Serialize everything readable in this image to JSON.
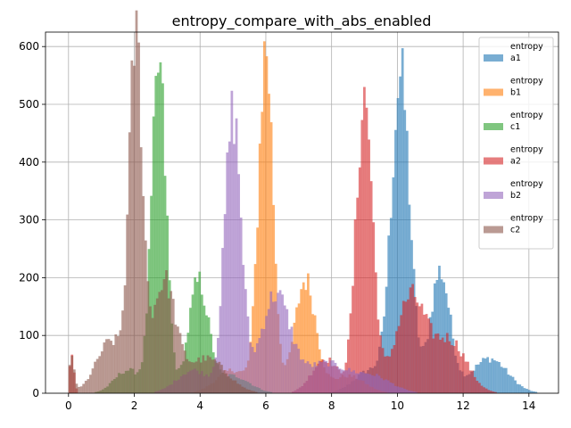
{
  "chart_data": {
    "type": "histogram",
    "title": "entropy_compare_with_abs_enabled",
    "xlabel": "",
    "ylabel": "",
    "xlim": [
      -0.7,
      14.9
    ],
    "ylim": [
      0,
      625
    ],
    "x_ticks": [
      0,
      2,
      4,
      6,
      8,
      10,
      12,
      14
    ],
    "y_ticks": [
      0,
      100,
      200,
      300,
      400,
      500,
      600
    ],
    "grid": true,
    "legend_position": "upper right",
    "alpha": 0.6,
    "series": [
      {
        "name": "entropy a1",
        "color": "#1f77b4",
        "peaks": [
          {
            "x": 10.1,
            "height": 540,
            "sigma": 0.28
          },
          {
            "x": 11.3,
            "height": 210,
            "sigma": 0.3
          },
          {
            "x": 12.8,
            "height": 60,
            "sigma": 0.55
          },
          {
            "x": 9.2,
            "height": 40,
            "sigma": 0.5
          }
        ]
      },
      {
        "name": "entropy b1",
        "color": "#ff7f0e",
        "peaks": [
          {
            "x": 6.0,
            "height": 590,
            "sigma": 0.22
          },
          {
            "x": 7.2,
            "height": 195,
            "sigma": 0.32
          },
          {
            "x": 5.0,
            "height": 40,
            "sigma": 0.5
          },
          {
            "x": 8.5,
            "height": 30,
            "sigma": 0.5
          }
        ]
      },
      {
        "name": "entropy c1",
        "color": "#2ca02c",
        "peaks": [
          {
            "x": 2.75,
            "height": 560,
            "sigma": 0.22
          },
          {
            "x": 3.95,
            "height": 190,
            "sigma": 0.3
          },
          {
            "x": 1.8,
            "height": 40,
            "sigma": 0.4
          },
          {
            "x": 5.0,
            "height": 30,
            "sigma": 0.5
          }
        ]
      },
      {
        "name": "entropy a2",
        "color": "#d62728",
        "peaks": [
          {
            "x": 9.0,
            "height": 510,
            "sigma": 0.25
          },
          {
            "x": 10.4,
            "height": 165,
            "sigma": 0.45
          },
          {
            "x": 11.6,
            "height": 90,
            "sigma": 0.5
          },
          {
            "x": 7.8,
            "height": 60,
            "sigma": 0.4
          },
          {
            "x": 0.1,
            "height": 70,
            "sigma": 0.07
          }
        ]
      },
      {
        "name": "entropy b2",
        "color": "#9467bd",
        "peaks": [
          {
            "x": 5.0,
            "height": 480,
            "sigma": 0.25
          },
          {
            "x": 6.3,
            "height": 170,
            "sigma": 0.45
          },
          {
            "x": 7.8,
            "height": 50,
            "sigma": 0.6
          },
          {
            "x": 3.8,
            "height": 40,
            "sigma": 0.5
          },
          {
            "x": 9.2,
            "height": 30,
            "sigma": 0.6
          }
        ]
      },
      {
        "name": "entropy c2",
        "color": "#8c564b",
        "peaks": [
          {
            "x": 2.05,
            "height": 590,
            "sigma": 0.2
          },
          {
            "x": 2.9,
            "height": 190,
            "sigma": 0.35
          },
          {
            "x": 1.3,
            "height": 90,
            "sigma": 0.45
          },
          {
            "x": 4.2,
            "height": 60,
            "sigma": 0.6
          },
          {
            "x": 0.1,
            "height": 60,
            "sigma": 0.08
          }
        ]
      }
    ]
  }
}
